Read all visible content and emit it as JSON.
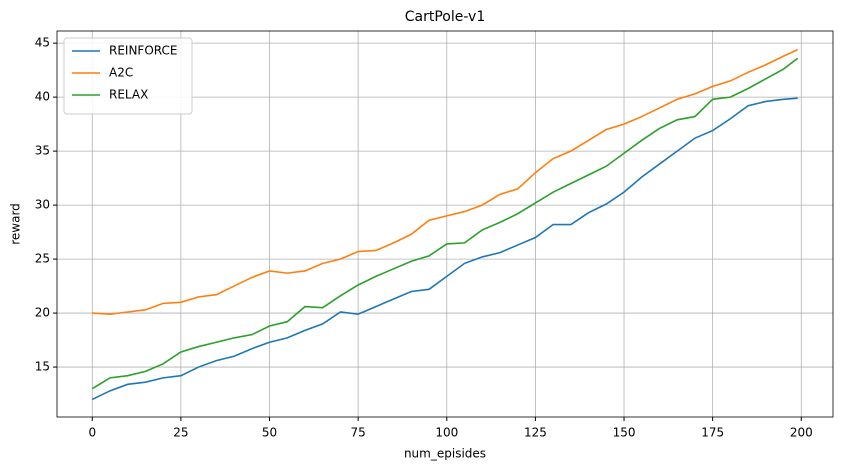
{
  "chart_data": {
    "type": "line",
    "title": "CartPole-v1",
    "xlabel": "num_episides",
    "ylabel": "reward",
    "x": [
      0,
      5,
      10,
      15,
      20,
      25,
      30,
      35,
      40,
      45,
      50,
      55,
      60,
      65,
      70,
      75,
      80,
      85,
      90,
      95,
      100,
      105,
      110,
      115,
      120,
      125,
      130,
      135,
      140,
      145,
      150,
      155,
      160,
      165,
      170,
      175,
      180,
      185,
      190,
      195,
      199
    ],
    "series": [
      {
        "name": "REINFORCE",
        "color": "#1f77b4",
        "values": [
          12.0,
          12.8,
          13.4,
          13.6,
          14.0,
          14.2,
          15.0,
          15.6,
          16.0,
          16.7,
          17.3,
          17.7,
          18.4,
          19.0,
          20.1,
          19.9,
          20.6,
          21.3,
          22.0,
          22.2,
          23.4,
          24.6,
          25.2,
          25.6,
          26.3,
          27.0,
          28.2,
          28.2,
          29.3,
          30.1,
          31.2,
          32.6,
          33.8,
          35.0,
          36.2,
          36.9,
          38.0,
          39.2,
          39.6,
          39.8,
          39.9
        ]
      },
      {
        "name": "A2C",
        "color": "#ff7f0e",
        "values": [
          20.0,
          19.9,
          20.1,
          20.3,
          20.9,
          21.0,
          21.5,
          21.7,
          22.5,
          23.3,
          23.9,
          23.7,
          23.9,
          24.6,
          25.0,
          25.7,
          25.8,
          26.5,
          27.3,
          28.6,
          29.0,
          29.4,
          30.0,
          31.0,
          31.5,
          33.0,
          34.3,
          35.0,
          36.0,
          37.0,
          37.5,
          38.2,
          39.0,
          39.8,
          40.3,
          41.0,
          41.5,
          42.3,
          43.0,
          43.8,
          44.4
        ]
      },
      {
        "name": "RELAX",
        "color": "#2ca02c",
        "values": [
          13.0,
          14.0,
          14.2,
          14.6,
          15.3,
          16.4,
          16.9,
          17.3,
          17.7,
          18.0,
          18.8,
          19.2,
          20.6,
          20.5,
          21.6,
          22.6,
          23.4,
          24.1,
          24.8,
          25.3,
          26.4,
          26.5,
          27.7,
          28.4,
          29.2,
          30.2,
          31.2,
          32.0,
          32.8,
          33.6,
          34.8,
          36.0,
          37.1,
          37.9,
          38.2,
          39.8,
          40.0,
          40.8,
          41.7,
          42.6,
          43.6
        ]
      }
    ],
    "xlim": [
      -9.95,
      208.95
    ],
    "ylim": [
      10.375,
      46.125
    ],
    "xticks": [
      0,
      25,
      50,
      75,
      100,
      125,
      150,
      175,
      200
    ],
    "yticks": [
      15,
      20,
      25,
      30,
      35,
      40,
      45
    ],
    "grid": true,
    "legend": "upper-left"
  }
}
